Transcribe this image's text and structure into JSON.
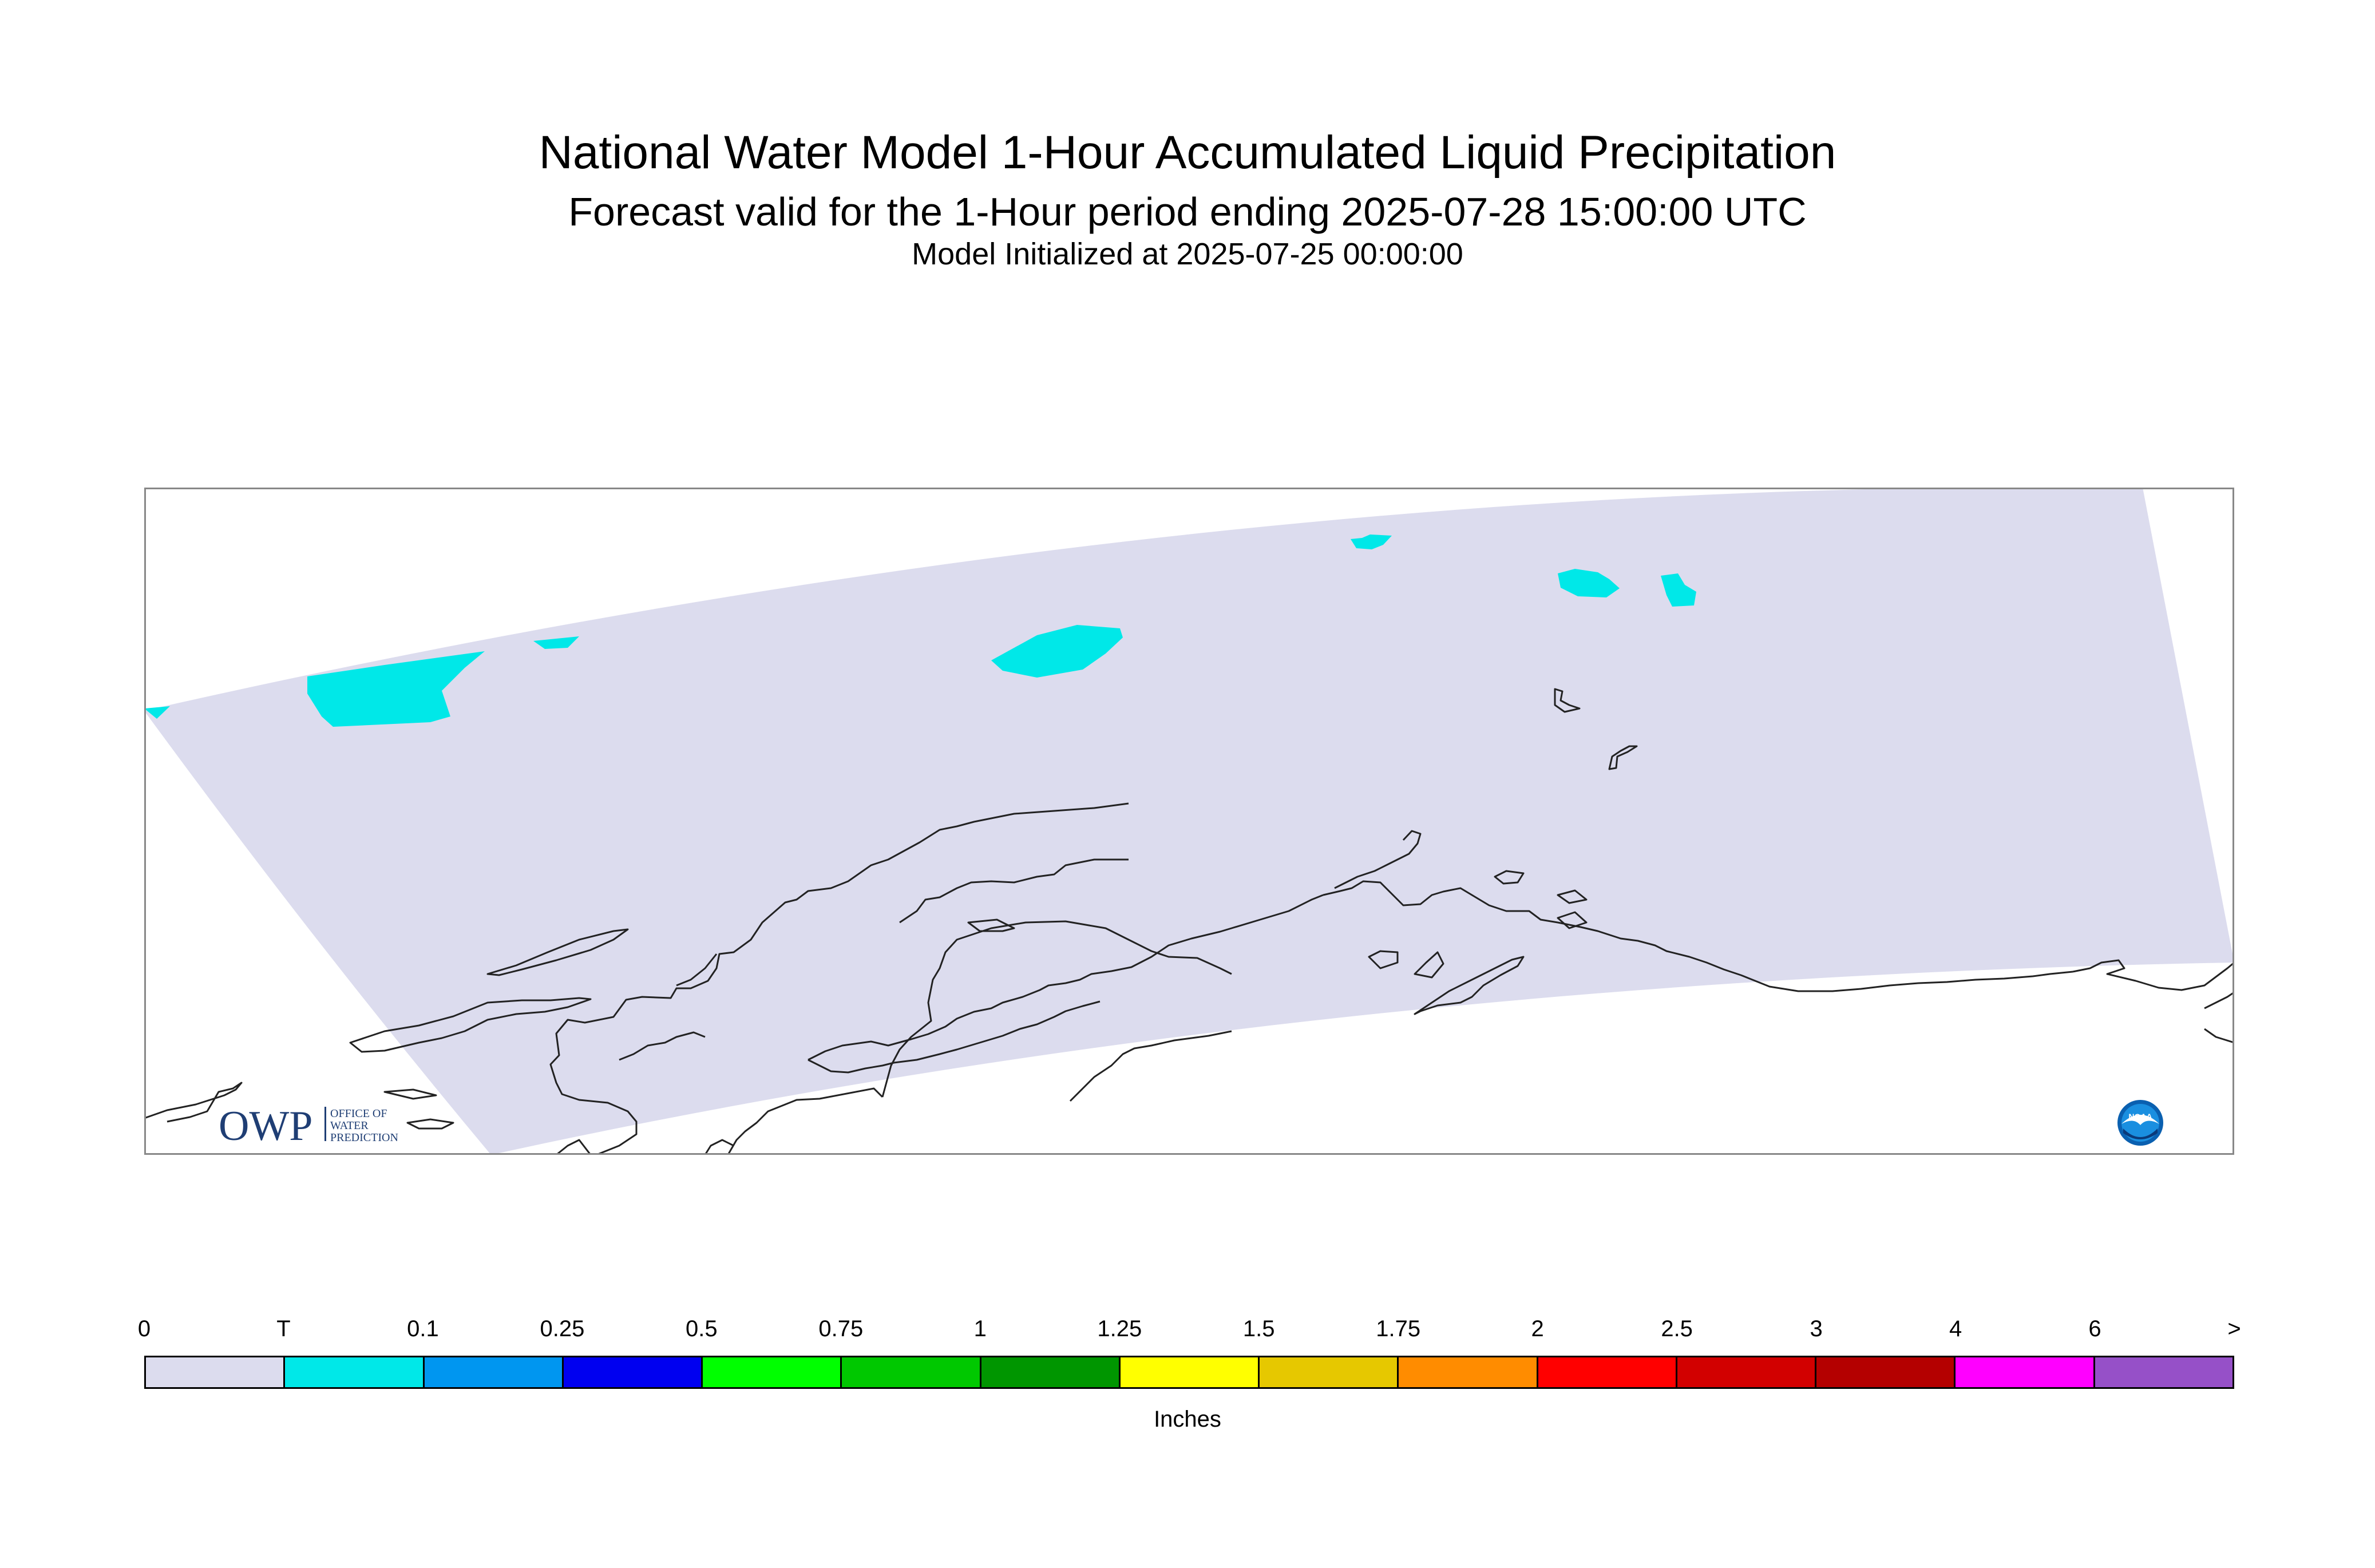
{
  "titles": {
    "main": "National Water Model 1-Hour Accumulated Liquid Precipitation",
    "sub": "Forecast valid for the 1-Hour period ending 2025-07-28 15:00:00 UTC",
    "init": "Model Initialized at 2025-07-25 00:00:00"
  },
  "map": {
    "domain_fill_color": "#dcdcee",
    "precip_color": "#00e8e8",
    "coast_color": "#222222",
    "frame_color": "#888888",
    "owp_logo": {
      "letters": "OWP",
      "line1": "OFFICE OF",
      "line2": "WATER",
      "line3": "PREDICTION"
    },
    "noaa_logo": {
      "text": "NOAA"
    }
  },
  "legend": {
    "tick_labels": [
      "0",
      "T",
      "0.1",
      "0.25",
      "0.5",
      "0.75",
      "1",
      "1.25",
      "1.5",
      "1.75",
      "2",
      "2.5",
      "3",
      "4",
      "6",
      ">"
    ],
    "colors": [
      "#dcdcee",
      "#00e8e8",
      "#0096f0",
      "#0000f0",
      "#00ff00",
      "#00c800",
      "#009600",
      "#ffff00",
      "#e6c800",
      "#ff8c00",
      "#ff0000",
      "#d20000",
      "#b40000",
      "#ff00ff",
      "#9650c8"
    ],
    "units": "Inches"
  }
}
